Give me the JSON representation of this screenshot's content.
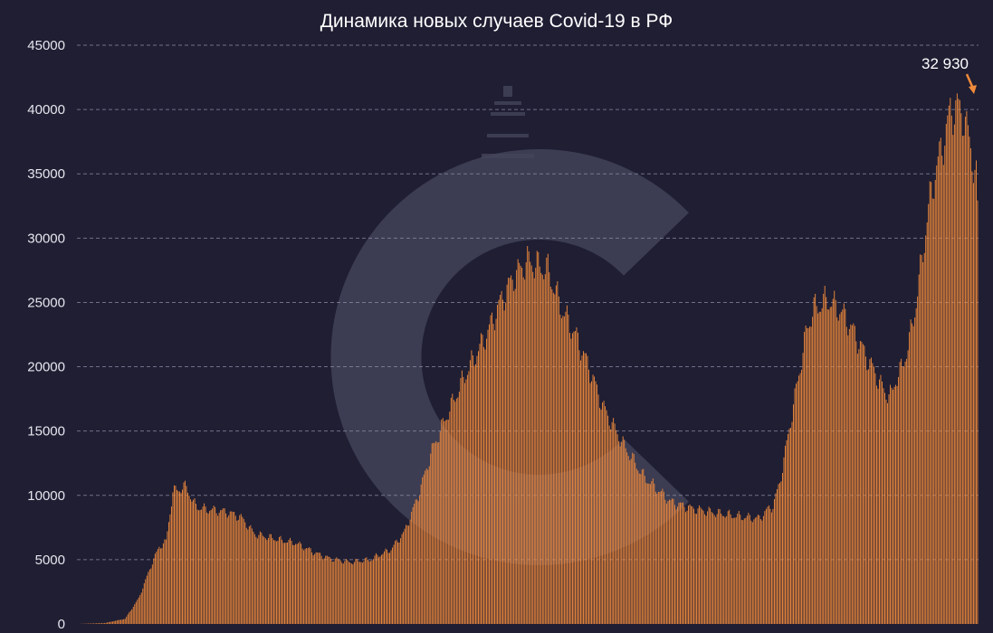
{
  "title": "Динамика новых случаев Covid-19 в РФ",
  "colors": {
    "background": "#1f1e33",
    "bar": "#f08a3b",
    "grid": "#8d8ca6",
    "text": "#e6e6ee",
    "annotation_arrow": "#f08a3b",
    "watermark": "#44435a"
  },
  "watermark": {
    "icon": "circular-c-logo-icon"
  },
  "chart_data": {
    "type": "bar",
    "title": "Динамика новых случаев Covid-19 в РФ",
    "xlabel": "",
    "ylabel": "",
    "ylim": [
      0,
      45000
    ],
    "yticks": [
      0,
      5000,
      10000,
      15000,
      20000,
      25000,
      30000,
      35000,
      40000,
      45000
    ],
    "grid": true,
    "daily_points": 661,
    "series": [
      {
        "approx_curve": [
          [
            0,
            0
          ],
          [
            20,
            70
          ],
          [
            35,
            400
          ],
          [
            45,
            2000
          ],
          [
            55,
            4800
          ],
          [
            60,
            6000
          ],
          [
            65,
            6400
          ],
          [
            70,
            10300
          ],
          [
            80,
            10700
          ],
          [
            85,
            9400
          ],
          [
            90,
            9000
          ],
          [
            110,
            8700
          ],
          [
            120,
            8300
          ],
          [
            130,
            7000
          ],
          [
            150,
            6500
          ],
          [
            160,
            6300
          ],
          [
            175,
            5500
          ],
          [
            185,
            5100
          ],
          [
            200,
            4800
          ],
          [
            215,
            5000
          ],
          [
            220,
            5300
          ],
          [
            230,
            5800
          ],
          [
            240,
            7200
          ],
          [
            250,
            10000
          ],
          [
            260,
            13500
          ],
          [
            270,
            16000
          ],
          [
            285,
            19500
          ],
          [
            300,
            22500
          ],
          [
            310,
            25000
          ],
          [
            320,
            27000
          ],
          [
            330,
            28200
          ],
          [
            345,
            27500
          ],
          [
            355,
            24500
          ],
          [
            365,
            22500
          ],
          [
            375,
            20000
          ],
          [
            385,
            17000
          ],
          [
            400,
            14000
          ],
          [
            415,
            11500
          ],
          [
            425,
            10500
          ],
          [
            435,
            9500
          ],
          [
            450,
            9000
          ],
          [
            470,
            8600
          ],
          [
            490,
            8300
          ],
          [
            500,
            8200
          ],
          [
            505,
            8800
          ],
          [
            510,
            9200
          ],
          [
            515,
            11000
          ],
          [
            520,
            14000
          ],
          [
            525,
            17000
          ],
          [
            530,
            20000
          ],
          [
            535,
            23000
          ],
          [
            540,
            24500
          ],
          [
            550,
            25200
          ],
          [
            560,
            24300
          ],
          [
            565,
            23500
          ],
          [
            575,
            21500
          ],
          [
            585,
            19500
          ],
          [
            592,
            18000
          ],
          [
            597,
            17800
          ],
          [
            600,
            19000
          ],
          [
            605,
            20000
          ],
          [
            610,
            22000
          ],
          [
            615,
            25000
          ],
          [
            620,
            29000
          ],
          [
            625,
            33000
          ],
          [
            630,
            35500
          ],
          [
            635,
            37500
          ],
          [
            640,
            39800
          ],
          [
            645,
            40200
          ],
          [
            650,
            39500
          ],
          [
            655,
            37000
          ],
          [
            660,
            34000
          ],
          [
            664,
            33000
          ]
        ],
        "last_value": 32930
      }
    ],
    "annotations": [
      {
        "label": "32 930",
        "value": 32930,
        "target": "last-bar"
      }
    ]
  }
}
